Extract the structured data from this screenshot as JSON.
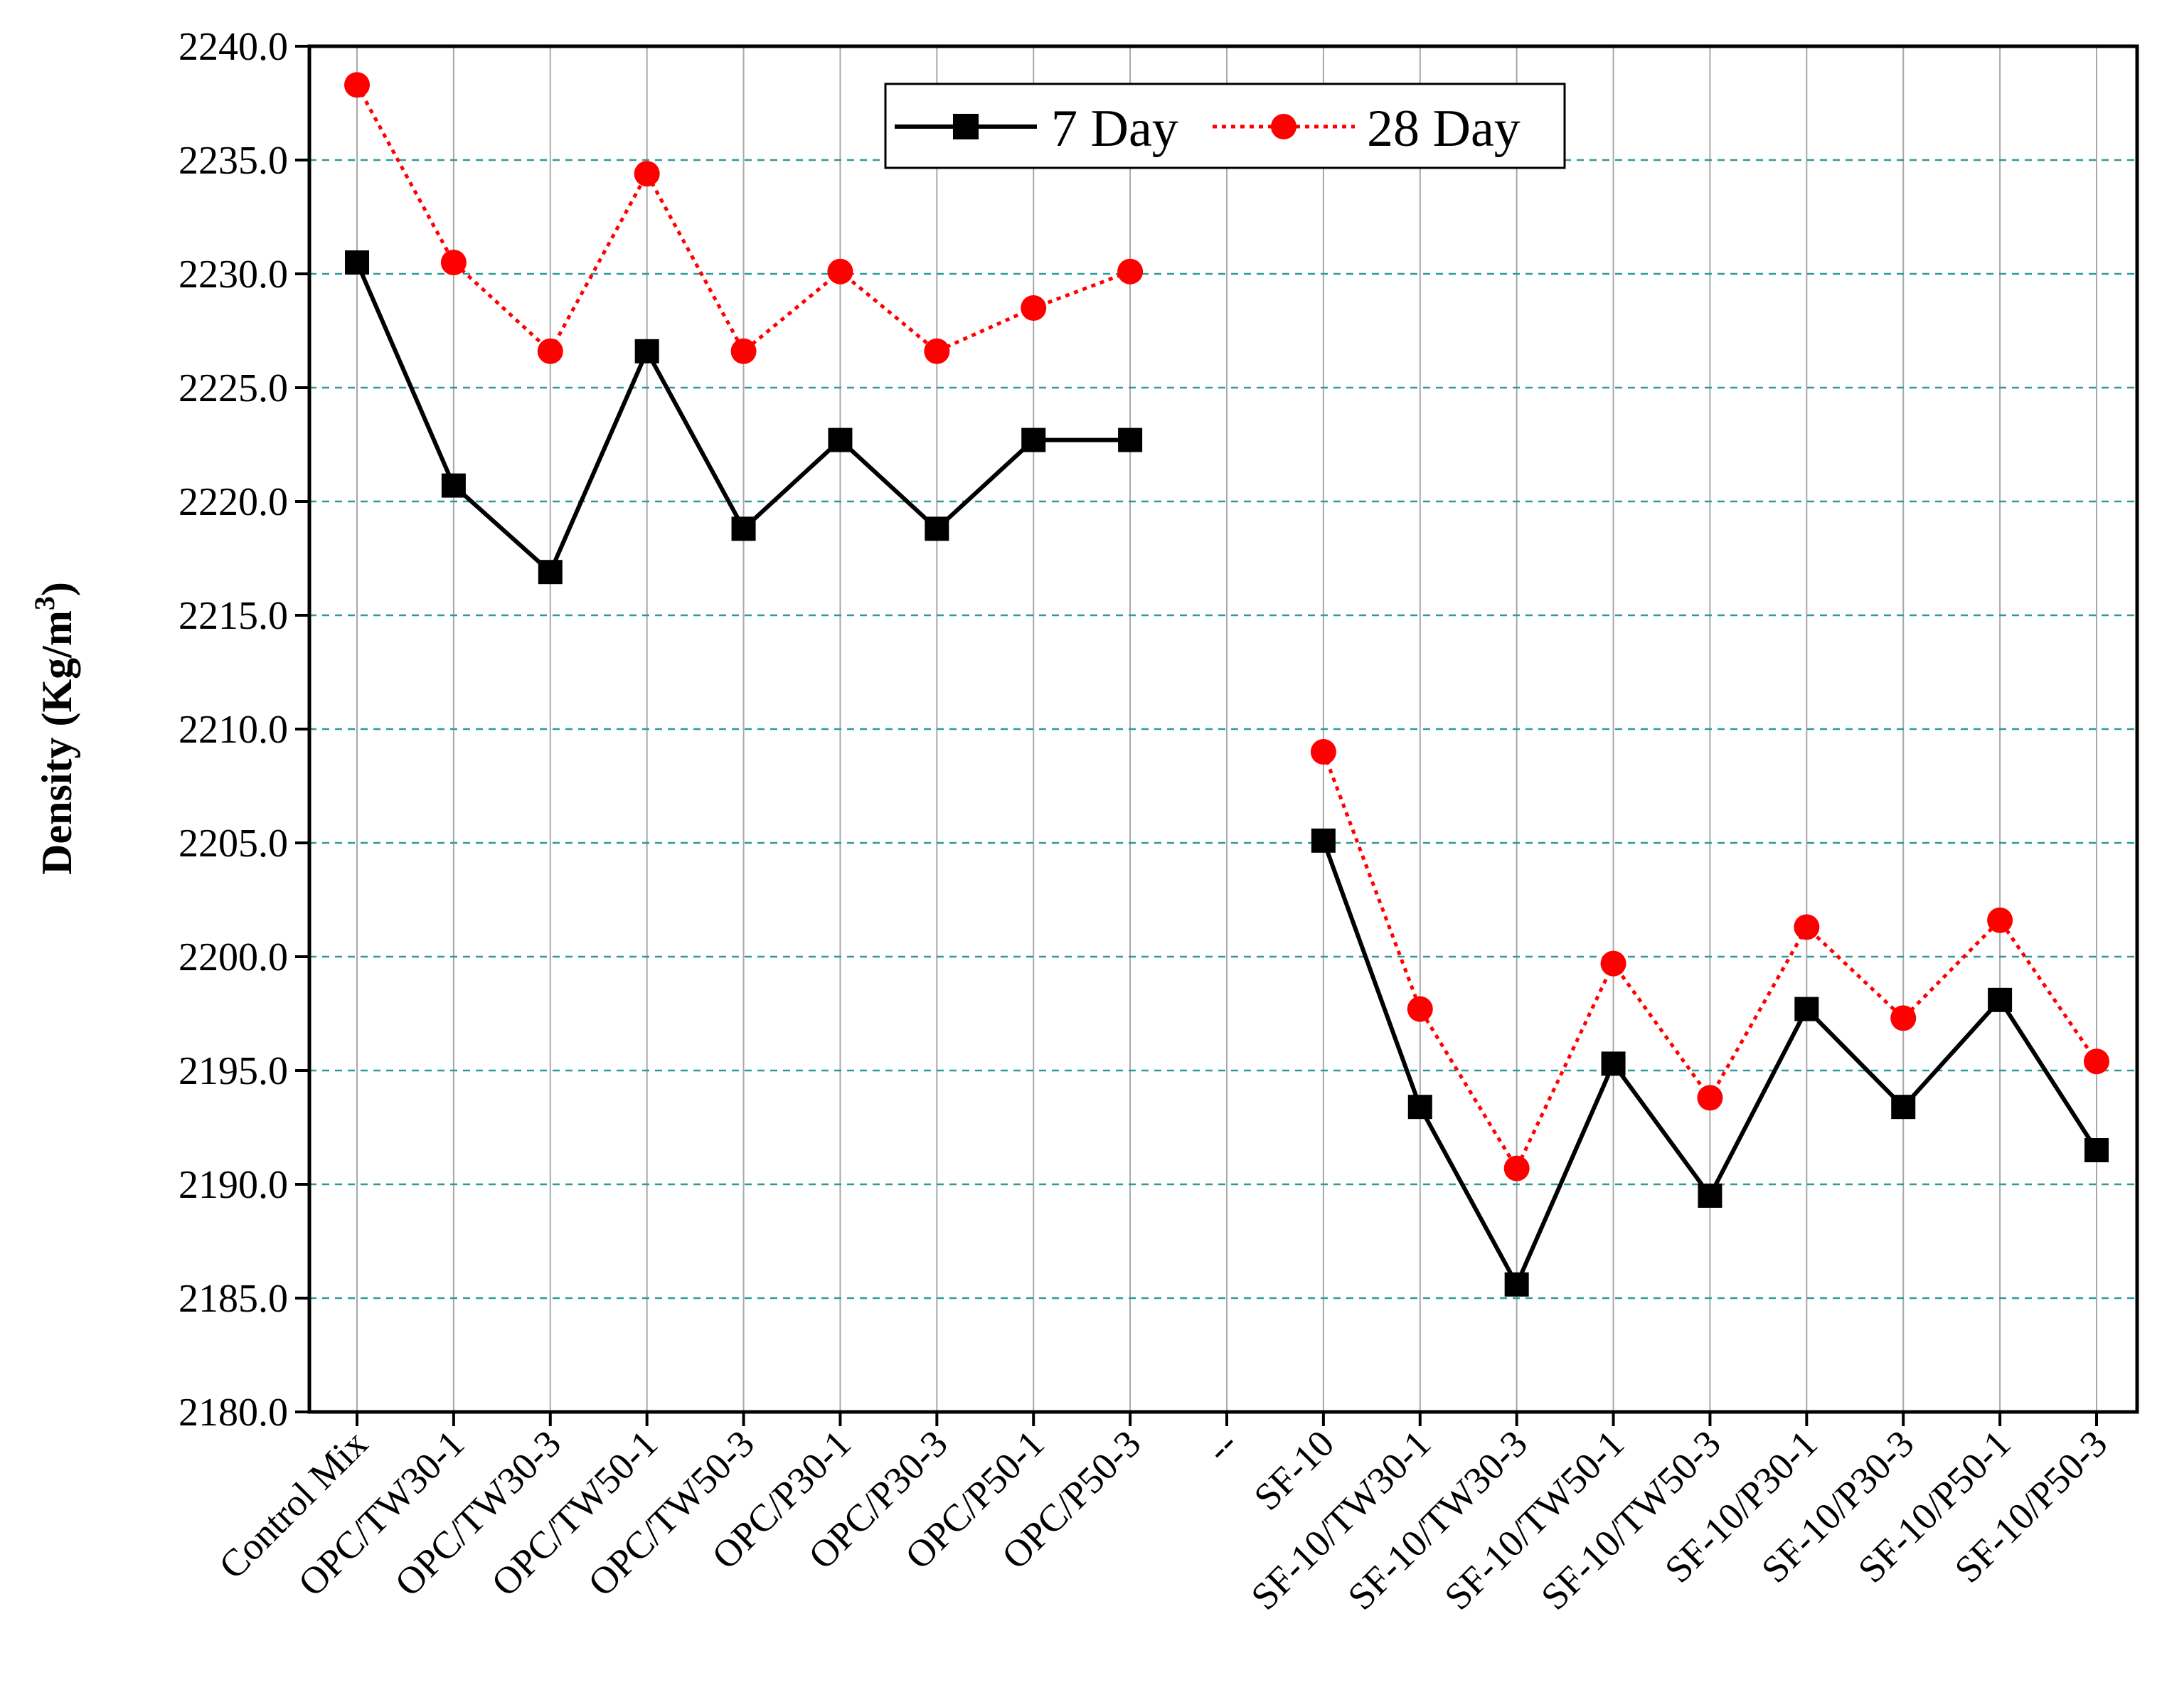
{
  "chart_data": {
    "type": "line",
    "title": "",
    "xlabel": "",
    "ylabel": "Density (Kg/m",
    "ylabel_sup": "3",
    "ylabel_close": ")",
    "ylim": [
      2180.0,
      2240.0
    ],
    "y_ticks": [
      "2180.0",
      "2185.0",
      "2190.0",
      "2195.0",
      "2200.0",
      "2205.0",
      "2210.0",
      "2215.0",
      "2220.0",
      "2225.0",
      "2230.0",
      "2235.0",
      "2240.0"
    ],
    "grid": true,
    "legend_position": "top-center",
    "categories": [
      "Control Mix",
      "OPC/TW30-1",
      "OPC/TW30-3",
      "OPC/TW50-1",
      "OPC/TW50-3",
      "OPC/P30-1",
      "OPC/P30-3",
      "OPC/P50-1",
      "OPC/P50-3",
      "--",
      "SF-10",
      "SF-10/TW30-1",
      "SF-10/TW30-3",
      "SF-10/TW50-1",
      "SF-10/TW50-3",
      "SF-10/P30-1",
      "SF-10/P30-3",
      "SF-10/P50-1",
      "SF-10/P50-3"
    ],
    "series": [
      {
        "name": "7 Day",
        "color": "#000000",
        "marker": "square",
        "line_style": "solid",
        "values": [
          2230.5,
          2220.7,
          2216.9,
          2226.6,
          2218.8,
          2222.7,
          2218.8,
          2222.7,
          2222.7,
          null,
          2205.1,
          2193.4,
          2185.6,
          2195.3,
          2189.5,
          2197.7,
          2193.4,
          2198.1,
          2191.5
        ]
      },
      {
        "name": "28 Day",
        "color": "#ff0000",
        "marker": "circle",
        "line_style": "dotted",
        "values": [
          2238.3,
          2230.5,
          2226.6,
          2234.4,
          2226.6,
          2230.1,
          2226.6,
          2228.5,
          2230.1,
          null,
          2209.0,
          2197.7,
          2190.7,
          2199.7,
          2193.8,
          2201.3,
          2197.3,
          2201.6,
          2195.4
        ]
      }
    ]
  }
}
